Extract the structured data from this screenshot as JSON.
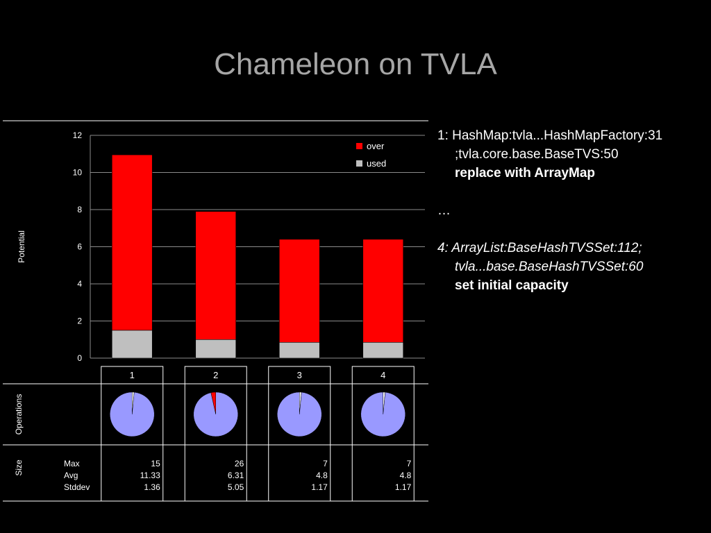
{
  "slide": {
    "title": "Chameleon on TVLA"
  },
  "chart_data": {
    "type": "bar",
    "stacked": true,
    "categories": [
      "1",
      "2",
      "3",
      "4"
    ],
    "series": [
      {
        "name": "used",
        "color": "#bfbfbf",
        "values": [
          1.5,
          1.0,
          0.85,
          0.85
        ]
      },
      {
        "name": "over",
        "color": "#ff0000",
        "values": [
          9.45,
          6.9,
          5.55,
          5.55
        ]
      }
    ],
    "ylabel": "Potential",
    "ylim": [
      0,
      12
    ],
    "yticks": [
      0,
      2,
      4,
      6,
      8,
      10,
      12
    ],
    "grid": true,
    "legend_position": "top-right",
    "operations_label": "Operations",
    "operations_pies": [
      {
        "slices": [
          {
            "value": 98.5,
            "color": "#9999ff"
          },
          {
            "value": 1.5,
            "color": "#ffffff"
          }
        ]
      },
      {
        "slices": [
          {
            "value": 96.5,
            "color": "#9999ff"
          },
          {
            "value": 3.5,
            "color": "#ff0000"
          }
        ]
      },
      {
        "slices": [
          {
            "value": 98.5,
            "color": "#9999ff"
          },
          {
            "value": 1.5,
            "color": "#ffffff"
          }
        ]
      },
      {
        "slices": [
          {
            "value": 98.5,
            "color": "#9999ff"
          },
          {
            "value": 1.5,
            "color": "#ffffff"
          }
        ]
      }
    ],
    "size_table": {
      "label": "Size",
      "row_labels": [
        "Max",
        "Avg",
        "Stddev"
      ],
      "columns": [
        [
          "15",
          "11.33",
          "1.36"
        ],
        [
          "26",
          "6.31",
          "5.05"
        ],
        [
          "7",
          "4.8",
          "1.17"
        ],
        [
          "7",
          "4.8",
          "1.17"
        ]
      ]
    }
  },
  "notes": {
    "item1_line1": "1: HashMap:tvla...HashMapFactory:31",
    "item1_line2": ";tvla.core.base.BaseTVS:50",
    "item1_action": "replace with ArrayMap",
    "ellipsis": "…",
    "item4_line1": "4: ArrayList:BaseHashTVSSet:112;",
    "item4_line2": "tvla...base.BaseHashTVSSet:60",
    "item4_action": "set initial capacity"
  }
}
